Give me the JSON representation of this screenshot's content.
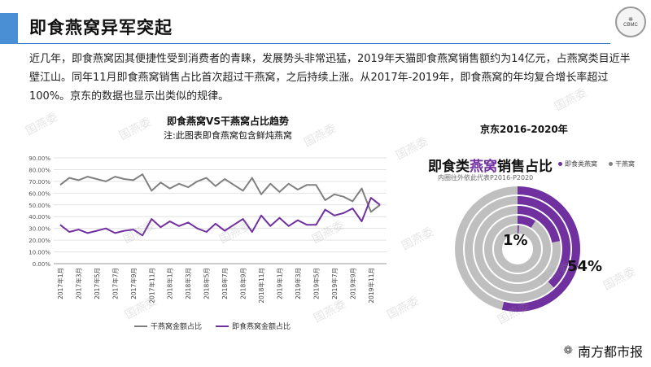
{
  "header": {
    "title": "即食燕窝异军突起",
    "logo_text": "CBMC"
  },
  "paragraph": "近几年，即食燕窝因其便捷性受到消费者的青睐，发展势头非常迅猛，2019年天猫即食燕窝销售额约为14亿元，占燕窝类目近半壁江山。同年11月即食燕窝销售占比首次超过干燕窝，之后持续上涨。从2017年-2019年，即食燕窝的年均复合增长率超过100%。京东的数据也显示出类似的规律。",
  "line_chart_title": "即食燕窝VS干燕窝占比趋势",
  "line_chart_note": "注:此图表即食燕窝包含鲜炖燕窝",
  "jd_chart_title": "京东2016-2020年",
  "donut": {
    "heading_prefix": "即食类",
    "heading_highlight": "燕窝",
    "heading_suffix": "销售占比",
    "subtitle": "内圈往外依此代表P2016-P2020",
    "legend_instant": "即食类燕窝",
    "legend_dry": "干燕窝",
    "label_inner": "1%",
    "label_outer": "54%"
  },
  "watermark": "国燕委",
  "brand": "南方都市报",
  "colors": {
    "dry": "#808080",
    "instant": "#7030a0",
    "ring_gray": "#bfbfbf",
    "accent": "#4a8fd4"
  },
  "chart_data": [
    {
      "type": "line",
      "title": "即食燕窝VS干燕窝占比趋势",
      "ylabel": "",
      "ylim": [
        0,
        90
      ],
      "yticks": [
        "0.00%",
        "10.00%",
        "20.00%",
        "30.00%",
        "40.00%",
        "50.00%",
        "60.00%",
        "70.00%",
        "80.00%",
        "90.00%"
      ],
      "x_labels": [
        "2017年1月",
        "2017年3月",
        "2017年5月",
        "2017年7月",
        "2017年9月",
        "2017年11月",
        "2018年1月",
        "2018年3月",
        "2018年5月",
        "2018年7月",
        "2018年9月",
        "2018年11月",
        "2019年1月",
        "2019年3月",
        "2019年5月",
        "2019年7月",
        "2019年9月",
        "2019年11月"
      ],
      "series": [
        {
          "name": "干燕窝金额占比",
          "color": "#808080",
          "values": [
            67,
            73,
            71,
            74,
            72,
            70,
            74,
            72,
            71,
            76,
            62,
            69,
            64,
            68,
            65,
            70,
            73,
            66,
            72,
            67,
            62,
            73,
            59,
            68,
            61,
            68,
            63,
            67,
            67,
            54,
            59,
            57,
            53,
            64,
            44,
            50
          ]
        },
        {
          "name": "即食燕窝金额占比",
          "color": "#7030a0",
          "values": [
            33,
            27,
            29,
            26,
            28,
            30,
            26,
            28,
            29,
            24,
            38,
            31,
            36,
            32,
            35,
            30,
            27,
            34,
            28,
            33,
            38,
            27,
            41,
            32,
            39,
            32,
            37,
            33,
            33,
            46,
            41,
            43,
            47,
            36,
            56,
            50
          ]
        }
      ]
    },
    {
      "type": "pie",
      "title": "即食类燕窝销售占比",
      "categories": [
        "P2016",
        "P2017",
        "P2018",
        "P2019",
        "P2020"
      ],
      "instant_share_pct": [
        1,
        9,
        22,
        38,
        54
      ],
      "dry_share_pct": [
        99,
        91,
        78,
        62,
        46
      ]
    }
  ]
}
